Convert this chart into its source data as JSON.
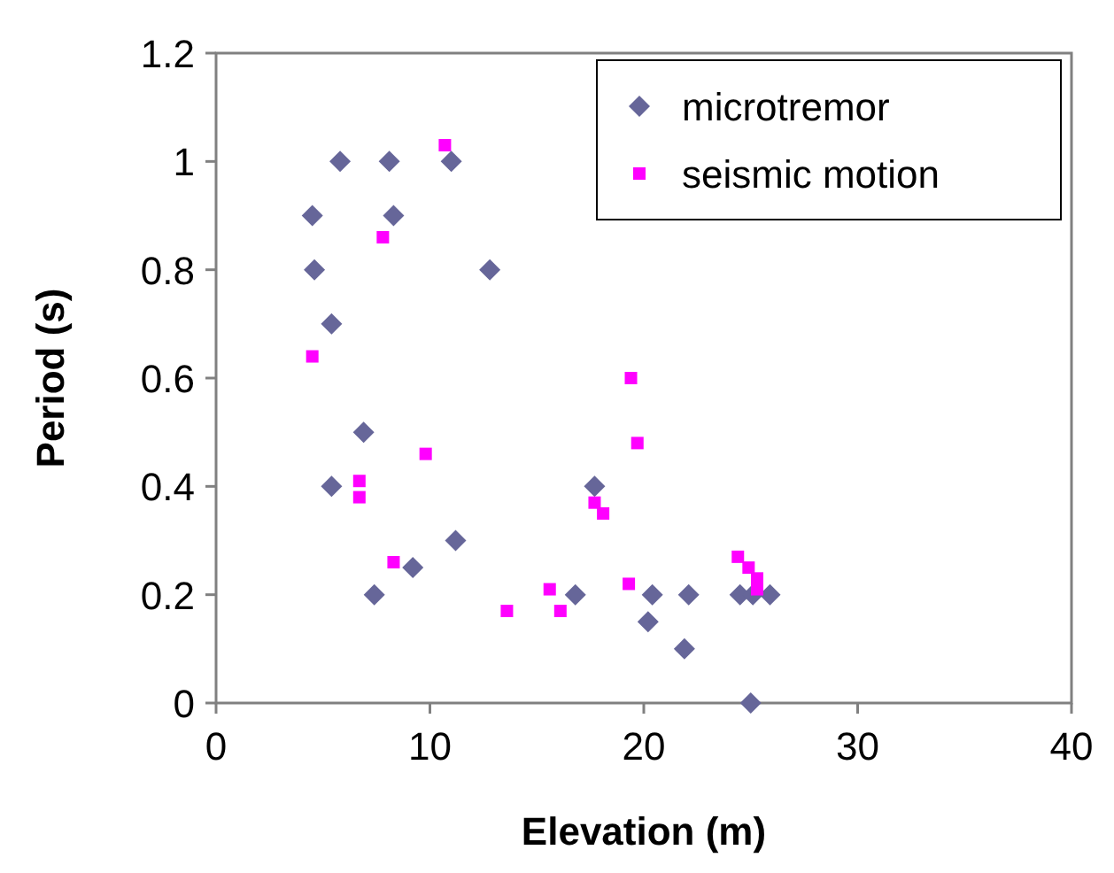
{
  "chart_data": {
    "type": "scatter",
    "xlabel": "Elevation (m)",
    "ylabel": "Period (s)",
    "xlim": [
      0,
      40
    ],
    "xticks": [
      0,
      10,
      20,
      30,
      40
    ],
    "ylim": [
      0,
      1.2
    ],
    "yticks": [
      0,
      0.2,
      0.4,
      0.6,
      0.8,
      1,
      1.2
    ],
    "grid": false,
    "legend": "top right",
    "series": [
      {
        "name": "microtremor",
        "color": "#666699",
        "marker": "diamond",
        "x": [
          5.8,
          8.1,
          11.0,
          4.5,
          8.3,
          4.6,
          12.8,
          5.4,
          6.9,
          5.4,
          11.2,
          9.2,
          7.4,
          17.7,
          16.8,
          20.4,
          22.1,
          24.5,
          25.1,
          25.9,
          20.2,
          21.9,
          25.0
        ],
        "values": [
          1,
          1,
          1,
          0.9,
          0.9,
          0.8,
          0.8,
          0.7,
          0.5,
          0.4,
          0.3,
          0.25,
          0.2,
          0.4,
          0.2,
          0.2,
          0.2,
          0.2,
          0.2,
          0.2,
          0.15,
          0.1,
          0
        ]
      },
      {
        "name": "seismic motion",
        "color": "#ff00ff",
        "marker": "square",
        "x": [
          10.7,
          7.8,
          4.5,
          9.8,
          6.7,
          6.7,
          8.3,
          15.6,
          13.6,
          19.4,
          19.7,
          17.7,
          18.1,
          19.3,
          16.1,
          24.4,
          24.9,
          25.3,
          25.3
        ],
        "values": [
          1.03,
          0.86,
          0.64,
          0.46,
          0.41,
          0.38,
          0.26,
          0.21,
          0.17,
          0.6,
          0.48,
          0.37,
          0.35,
          0.22,
          0.17,
          0.27,
          0.25,
          0.23,
          0.21
        ]
      }
    ]
  }
}
